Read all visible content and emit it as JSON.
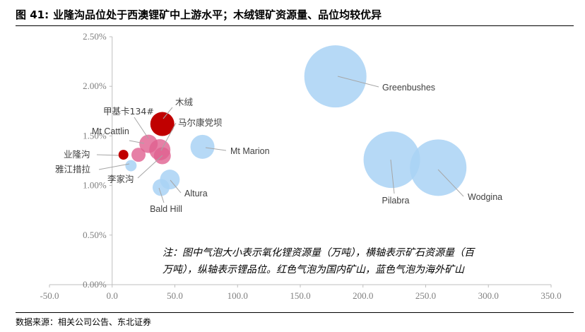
{
  "figure": {
    "label": "图 41:",
    "title": "业隆沟品位处于西澳锂矿中上游水平；木绒锂矿资源量、品位均较优异",
    "source": "数据来源：相关公司公告、东北证券"
  },
  "colors": {
    "domestic_dark": "#c00000",
    "domestic_light": "#e06090",
    "overseas": "#a9d2f5",
    "axis": "#bfbfbf",
    "leader": "#a6a6a6"
  },
  "chart_data": {
    "type": "scatter",
    "bubble": true,
    "title": "",
    "xlabel": "",
    "ylabel": "",
    "xlim": [
      -50,
      350
    ],
    "ylim": [
      0,
      2.5
    ],
    "x_ticks": [
      "-50.0",
      "0.0",
      "50.0",
      "100.0",
      "150.0",
      "200.0",
      "250.0",
      "300.0",
      "350.0"
    ],
    "y_ticks": [
      "0.00%",
      "0.50%",
      "1.00%",
      "1.50%",
      "2.00%",
      "2.50%"
    ],
    "grid": false,
    "points": [
      {
        "name": "Greenbushes",
        "x": 178,
        "y": 2.1,
        "r": 44,
        "group": "overseas"
      },
      {
        "name": "Pilabra",
        "x": 223,
        "y": 1.26,
        "r": 40,
        "group": "overseas"
      },
      {
        "name": "Wodgina",
        "x": 260,
        "y": 1.18,
        "r": 40,
        "group": "overseas"
      },
      {
        "name": "Mt Marion",
        "x": 72,
        "y": 1.39,
        "r": 17,
        "group": "overseas"
      },
      {
        "name": "Altura",
        "x": 46,
        "y": 1.06,
        "r": 14,
        "group": "overseas"
      },
      {
        "name": "Bald Hill",
        "x": 39,
        "y": 0.98,
        "r": 12,
        "group": "overseas"
      },
      {
        "name": "Mt Cattlin",
        "x": 15,
        "y": 1.2,
        "r": 8,
        "group": "overseas"
      },
      {
        "name": "木绒",
        "x": 40,
        "y": 1.62,
        "r": 17,
        "group": "domestic_dark"
      },
      {
        "name": "业隆沟",
        "x": 9,
        "y": 1.31,
        "r": 7,
        "group": "domestic_dark"
      },
      {
        "name": "甲基卡134#",
        "x": 29,
        "y": 1.42,
        "r": 13,
        "group": "domestic_light"
      },
      {
        "name": "马尔康党坝",
        "x": 38,
        "y": 1.36,
        "r": 15,
        "group": "domestic_light"
      },
      {
        "name": "李家沟",
        "x": 40,
        "y": 1.3,
        "r": 12,
        "group": "domestic_light"
      },
      {
        "name": "雅江措拉",
        "x": 21,
        "y": 1.31,
        "r": 10,
        "group": "domestic_light"
      }
    ],
    "annotation": [
      "注：图中气泡大小表示氧化锂资源量（万吨），横轴表示矿石资源量（百",
      "万吨），纵轴表示锂品位。红色气泡为国内矿山，蓝色气泡为海外矿山"
    ]
  }
}
